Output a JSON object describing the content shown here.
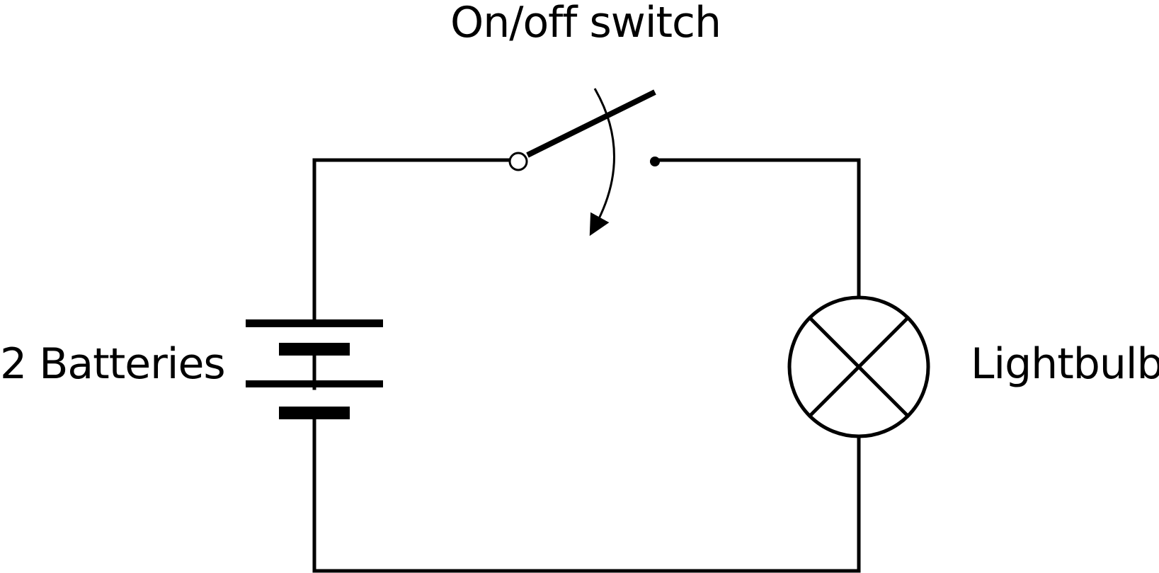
{
  "labels": {
    "switch": "On/off switch",
    "batteries": "2 Batteries",
    "lightbulb": "Lightbulb"
  },
  "components": {
    "switch_state": "open",
    "battery_count": 2
  },
  "colors": {
    "line": "#000000",
    "background": "#ffffff"
  }
}
